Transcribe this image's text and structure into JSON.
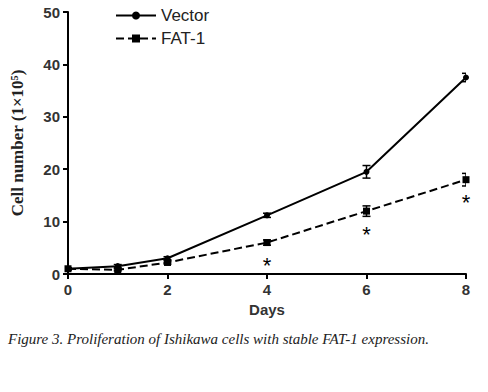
{
  "chart_data": {
    "type": "line",
    "caption": "Figure 3. Proliferation of Ishikawa cells with stable FAT-1 expression.",
    "x_label": "Days",
    "y_label": "Cell number (1×10⁵)",
    "x": [
      0,
      1,
      2,
      4,
      6,
      8
    ],
    "series": [
      {
        "name": "Vector",
        "color": "#000000",
        "marker": "circle",
        "line_style": "solid",
        "values": [
          1,
          1.5,
          3,
          11.2,
          19.5,
          37.5
        ],
        "errors": [
          0.2,
          0.3,
          0.3,
          0.4,
          1.2,
          0.8
        ]
      },
      {
        "name": "FAT-1",
        "color": "#000000",
        "marker": "square",
        "line_style": "dashed",
        "values": [
          1,
          0.8,
          2.2,
          6,
          12,
          18
        ],
        "errors": [
          0.2,
          0.2,
          0.3,
          0.5,
          1,
          1.2
        ]
      }
    ],
    "annotations": [
      {
        "text": "*",
        "x": 4,
        "series": "FAT-1"
      },
      {
        "text": "*",
        "x": 6,
        "series": "FAT-1"
      },
      {
        "text": "*",
        "x": 8,
        "series": "FAT-1"
      }
    ],
    "xlim": [
      0,
      8
    ],
    "xticks": [
      0,
      2,
      4,
      6,
      8
    ],
    "ylim": [
      0,
      50
    ],
    "yticks": [
      0,
      10,
      20,
      30,
      40,
      50
    ],
    "grid": false,
    "legend": "top-left"
  }
}
